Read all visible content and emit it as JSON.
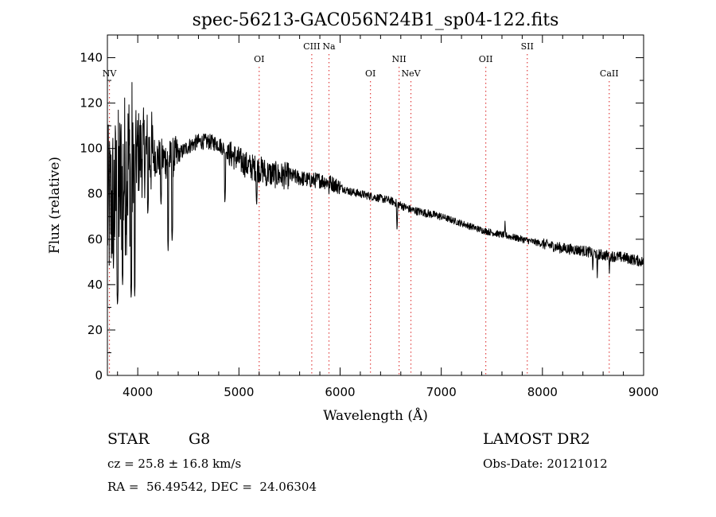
{
  "chart_data": {
    "type": "line",
    "title": "spec-56213-GAC056N24B1_sp04-122.fits",
    "xlabel": "Wavelength (Å)",
    "ylabel": "Flux (relative)",
    "xlim": [
      3700,
      9000
    ],
    "ylim": [
      0,
      150
    ],
    "xticks": [
      4000,
      5000,
      6000,
      7000,
      8000,
      9000
    ],
    "yticks": [
      0,
      20,
      40,
      60,
      80,
      100,
      120,
      140
    ],
    "grid": false,
    "line_color": "#000000",
    "marker_color": "#e04040",
    "continuum": [
      [
        3700,
        72
      ],
      [
        3800,
        80
      ],
      [
        3900,
        92
      ],
      [
        4000,
        98
      ],
      [
        4100,
        98
      ],
      [
        4200,
        96
      ],
      [
        4300,
        95
      ],
      [
        4400,
        97
      ],
      [
        4500,
        101
      ],
      [
        4600,
        103
      ],
      [
        4700,
        103
      ],
      [
        4800,
        102
      ],
      [
        4900,
        98
      ],
      [
        5000,
        95
      ],
      [
        5100,
        92
      ],
      [
        5200,
        91
      ],
      [
        5300,
        89
      ],
      [
        5400,
        88
      ],
      [
        5500,
        88
      ],
      [
        5600,
        87
      ],
      [
        5700,
        86
      ],
      [
        5800,
        86
      ],
      [
        5900,
        85
      ],
      [
        6000,
        83
      ],
      [
        6100,
        81
      ],
      [
        6200,
        80
      ],
      [
        6300,
        79
      ],
      [
        6400,
        78
      ],
      [
        6500,
        77
      ],
      [
        6600,
        75
      ],
      [
        6700,
        73
      ],
      [
        6800,
        72
      ],
      [
        6900,
        71
      ],
      [
        7000,
        70
      ],
      [
        7200,
        67
      ],
      [
        7400,
        64
      ],
      [
        7600,
        62
      ],
      [
        7800,
        60
      ],
      [
        8000,
        58
      ],
      [
        8200,
        56
      ],
      [
        8400,
        55
      ],
      [
        8600,
        53
      ],
      [
        8800,
        52
      ],
      [
        9000,
        50
      ]
    ],
    "absorption": [
      [
        3760,
        50
      ],
      [
        3800,
        30
      ],
      [
        3850,
        40
      ],
      [
        3935,
        33
      ],
      [
        3970,
        35
      ],
      [
        4100,
        70
      ],
      [
        4230,
        74
      ],
      [
        4300,
        55
      ],
      [
        4340,
        58
      ],
      [
        4862,
        75
      ],
      [
        5175,
        74
      ],
      [
        5270,
        82
      ],
      [
        5890,
        80
      ],
      [
        6563,
        63
      ],
      [
        8498,
        45
      ],
      [
        8542,
        43
      ],
      [
        8662,
        45
      ]
    ],
    "emission": [
      [
        7630,
        68
      ]
    ],
    "lines": [
      {
        "name": "NV",
        "wavelength": 3720,
        "row": 3
      },
      {
        "name": "OI",
        "wavelength": 5200,
        "row": 2
      },
      {
        "name": "CIII",
        "wavelength": 5720,
        "row": 1
      },
      {
        "name": "Na",
        "wavelength": 5890,
        "row": 1
      },
      {
        "name": "OI",
        "wavelength": 6300,
        "row": 3
      },
      {
        "name": "NII",
        "wavelength": 6583,
        "row": 2
      },
      {
        "name": "NeV",
        "wavelength": 6700,
        "row": 3
      },
      {
        "name": "OII",
        "wavelength": 7440,
        "row": 2
      },
      {
        "name": "SII",
        "wavelength": 7850,
        "row": 1
      },
      {
        "name": "CaII",
        "wavelength": 8660,
        "row": 3
      }
    ]
  },
  "info": {
    "object_class": "STAR",
    "subclass": "G8",
    "redshift": "cz = 25.8 ± 16.8 km/s",
    "coords": "RA =  56.49542, DEC =  24.06304",
    "survey": "LAMOST DR2",
    "obs_date": "Obs-Date: 20121012"
  }
}
